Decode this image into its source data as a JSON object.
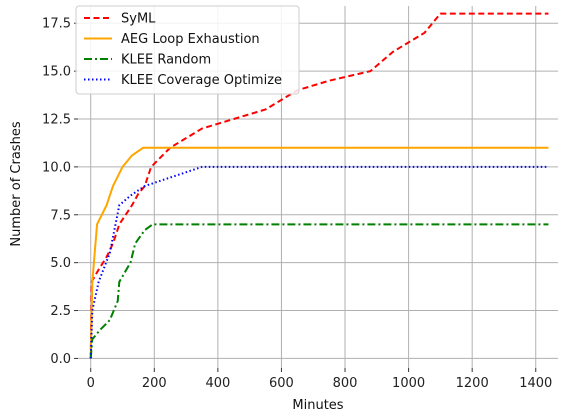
{
  "chart_data": {
    "type": "line",
    "title": "",
    "xlabel": "Minutes",
    "ylabel": "Number of Crashes",
    "xlim": [
      -40,
      1470
    ],
    "ylim": [
      -0.5,
      18.4
    ],
    "xticks": [
      0,
      200,
      400,
      600,
      800,
      1000,
      1200,
      1400
    ],
    "yticks": [
      0.0,
      2.5,
      5.0,
      7.5,
      10.0,
      12.5,
      15.0,
      17.5
    ],
    "ytick_labels": [
      "0.0",
      "2.5",
      "5.0",
      "7.5",
      "10.0",
      "12.5",
      "15.0",
      "17.5"
    ],
    "grid": true,
    "legend_position": "top-left",
    "series": [
      {
        "name": "SyML",
        "color": "#ff0000",
        "dash": "dashed",
        "points": [
          [
            0,
            0
          ],
          [
            3,
            4
          ],
          [
            20,
            4.5
          ],
          [
            50,
            5.3
          ],
          [
            70,
            6
          ],
          [
            90,
            7
          ],
          [
            110,
            7.5
          ],
          [
            130,
            8
          ],
          [
            150,
            8.6
          ],
          [
            170,
            9
          ],
          [
            190,
            10
          ],
          [
            250,
            11
          ],
          [
            350,
            12
          ],
          [
            450,
            12.5
          ],
          [
            550,
            13
          ],
          [
            650,
            14
          ],
          [
            750,
            14.5
          ],
          [
            880,
            15
          ],
          [
            950,
            16
          ],
          [
            1050,
            17
          ],
          [
            1100,
            18
          ],
          [
            1440,
            18
          ]
        ]
      },
      {
        "name": "AEG Loop Exhaustion",
        "color": "#ffa500",
        "dash": "solid",
        "points": [
          [
            0,
            0
          ],
          [
            5,
            4
          ],
          [
            20,
            7
          ],
          [
            50,
            8
          ],
          [
            70,
            9
          ],
          [
            100,
            10
          ],
          [
            130,
            10.6
          ],
          [
            165,
            11
          ],
          [
            1440,
            11
          ]
        ]
      },
      {
        "name": "KLEE Random",
        "color": "#008000",
        "dash": "dashdot",
        "points": [
          [
            0,
            0
          ],
          [
            5,
            1
          ],
          [
            30,
            1.5
          ],
          [
            60,
            2
          ],
          [
            85,
            3
          ],
          [
            90,
            4
          ],
          [
            125,
            5
          ],
          [
            140,
            6
          ],
          [
            170,
            6.7
          ],
          [
            195,
            7
          ],
          [
            1440,
            7
          ]
        ]
      },
      {
        "name": "KLEE Coverage Optimize",
        "color": "#0000ff",
        "dash": "dotted",
        "points": [
          [
            0,
            0
          ],
          [
            5,
            2.5
          ],
          [
            25,
            4
          ],
          [
            60,
            5.5
          ],
          [
            90,
            8
          ],
          [
            125,
            8.5
          ],
          [
            170,
            9
          ],
          [
            260,
            9.5
          ],
          [
            350,
            10
          ],
          [
            1440,
            10
          ]
        ]
      }
    ]
  }
}
